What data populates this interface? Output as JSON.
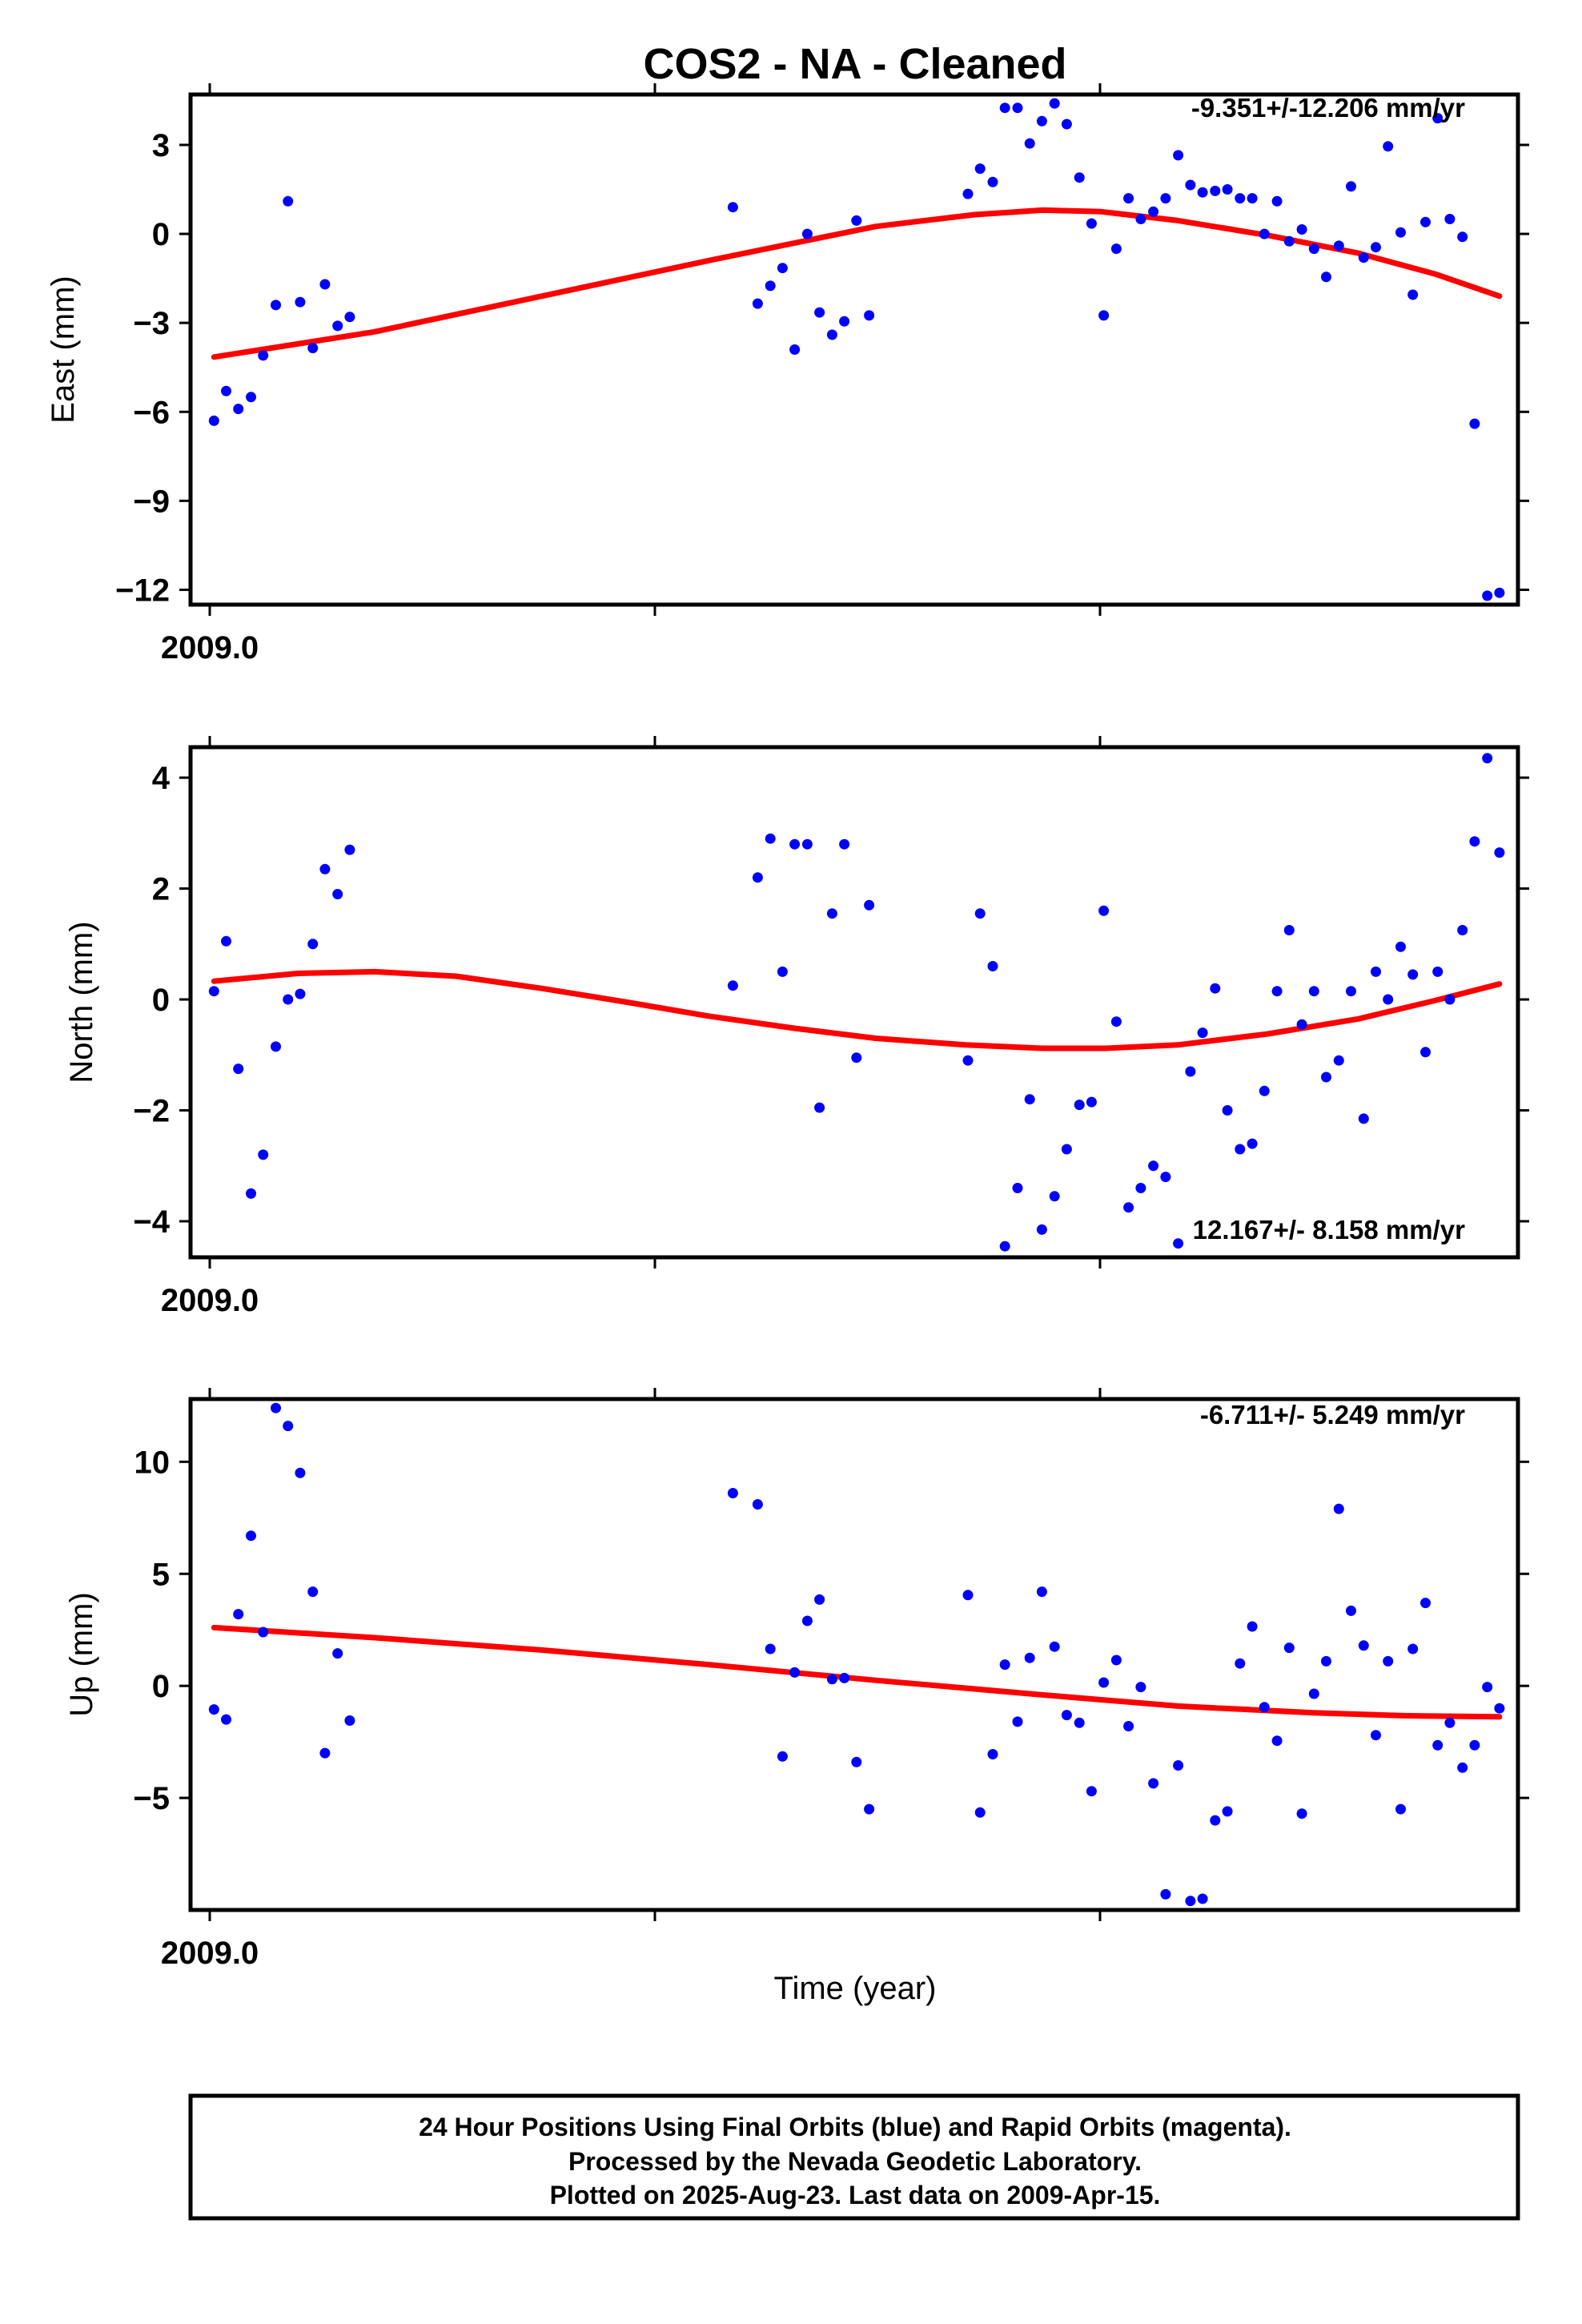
{
  "title": "COS2  - NA - Cleaned",
  "xlabel": "Time (year)",
  "x_tick_label": "2009.0",
  "footer": {
    "line1": "24 Hour Positions Using Final Orbits (blue) and Rapid Orbits (magenta).",
    "line2": "Processed by the Nevada Geodetic Laboratory.",
    "line3": "Plotted on 2025-Aug-23. Last data on 2009-Apr-15."
  },
  "colors": {
    "final_orbits": "#0000ff",
    "fit_line": "#ff0000",
    "frame": "#000000"
  },
  "chart_data": [
    {
      "type": "scatter",
      "ylabel": "East (mm)",
      "rate": "-9.351+/-12.206 mm/yr",
      "ylim": [
        -12.5,
        4.7
      ],
      "yticks": [
        3,
        0,
        -3,
        -6,
        -9,
        -12
      ],
      "xlim": [
        2008.9962,
        2009.2904
      ],
      "grid": false,
      "series": [
        {
          "name": "Final Orbits",
          "points": [
            [
              2009.0014,
              -6.3
            ],
            [
              2009.0041,
              -5.3
            ],
            [
              2009.0068,
              -5.9
            ],
            [
              2009.0096,
              -5.5
            ],
            [
              2009.0123,
              -4.1
            ],
            [
              2009.0151,
              -2.4
            ],
            [
              2009.0178,
              1.1
            ],
            [
              2009.0205,
              -2.3
            ],
            [
              2009.0233,
              -3.85
            ],
            [
              2009.026,
              -1.7
            ],
            [
              2009.0288,
              -3.1
            ],
            [
              2009.0315,
              -2.8
            ],
            [
              2009.1164,
              0.9
            ],
            [
              2009.1219,
              -2.35
            ],
            [
              2009.1247,
              -1.75
            ],
            [
              2009.1274,
              -1.15
            ],
            [
              2009.1301,
              -3.9
            ],
            [
              2009.1329,
              0.0
            ],
            [
              2009.1356,
              -2.65
            ],
            [
              2009.1384,
              -3.4
            ],
            [
              2009.1411,
              -2.95
            ],
            [
              2009.1438,
              0.45
            ],
            [
              2009.1466,
              -2.75
            ],
            [
              2009.1685,
              1.35
            ],
            [
              2009.1712,
              2.2
            ],
            [
              2009.174,
              1.75
            ],
            [
              2009.1767,
              4.25
            ],
            [
              2009.1795,
              4.25
            ],
            [
              2009.1822,
              3.05
            ],
            [
              2009.1849,
              3.8
            ],
            [
              2009.1877,
              4.4
            ],
            [
              2009.1904,
              3.7
            ],
            [
              2009.1932,
              1.9
            ],
            [
              2009.1959,
              0.35
            ],
            [
              2009.1986,
              -2.75
            ],
            [
              2009.2014,
              -0.5
            ],
            [
              2009.2041,
              1.2
            ],
            [
              2009.2068,
              0.5
            ],
            [
              2009.2096,
              0.75
            ],
            [
              2009.2123,
              1.2
            ],
            [
              2009.2151,
              2.65
            ],
            [
              2009.2178,
              1.65
            ],
            [
              2009.2205,
              1.4
            ],
            [
              2009.2233,
              1.45
            ],
            [
              2009.226,
              1.5
            ],
            [
              2009.2288,
              1.2
            ],
            [
              2009.2315,
              1.2
            ],
            [
              2009.2342,
              0.0
            ],
            [
              2009.237,
              1.1
            ],
            [
              2009.2397,
              -0.25
            ],
            [
              2009.2425,
              0.15
            ],
            [
              2009.2452,
              -0.5
            ],
            [
              2009.2479,
              -1.45
            ],
            [
              2009.2507,
              -0.4
            ],
            [
              2009.2534,
              1.6
            ],
            [
              2009.2562,
              -0.8
            ],
            [
              2009.2589,
              -0.45
            ],
            [
              2009.2616,
              2.95
            ],
            [
              2009.2644,
              0.05
            ],
            [
              2009.2671,
              -2.05
            ],
            [
              2009.2699,
              0.4
            ],
            [
              2009.2726,
              3.9
            ],
            [
              2009.2753,
              0.5
            ],
            [
              2009.2781,
              -0.1
            ],
            [
              2009.2808,
              -6.4
            ],
            [
              2009.2836,
              -12.2
            ],
            [
              2009.2863,
              -12.1
            ]
          ]
        },
        {
          "name": "Fit",
          "points": [
            [
              2009.0014,
              -4.15
            ],
            [
              2009.037,
              -3.3
            ],
            [
              2009.074,
              -2.1
            ],
            [
              2009.111,
              -0.9
            ],
            [
              2009.148,
              0.25
            ],
            [
              2009.17,
              0.65
            ],
            [
              2009.185,
              0.8
            ],
            [
              2009.198,
              0.75
            ],
            [
              2009.215,
              0.45
            ],
            [
              2009.235,
              -0.05
            ],
            [
              2009.255,
              -0.65
            ],
            [
              2009.272,
              -1.35
            ],
            [
              2009.2863,
              -2.1
            ]
          ]
        }
      ]
    },
    {
      "type": "scatter",
      "ylabel": "North (mm)",
      "rate": "12.167+/- 8.158 mm/yr",
      "ylim": [
        -4.65,
        4.55
      ],
      "yticks": [
        4,
        2,
        0,
        -2,
        -4
      ],
      "xlim": [
        2008.9962,
        2009.2904
      ],
      "grid": false,
      "series": [
        {
          "name": "Final Orbits",
          "points": [
            [
              2009.0014,
              0.15
            ],
            [
              2009.0041,
              1.05
            ],
            [
              2009.0068,
              -1.25
            ],
            [
              2009.0096,
              -3.5
            ],
            [
              2009.0123,
              -2.8
            ],
            [
              2009.0151,
              -0.85
            ],
            [
              2009.0178,
              0.0
            ],
            [
              2009.0205,
              0.1
            ],
            [
              2009.0233,
              1.0
            ],
            [
              2009.026,
              2.35
            ],
            [
              2009.0288,
              1.9
            ],
            [
              2009.0315,
              2.7
            ],
            [
              2009.1164,
              0.25
            ],
            [
              2009.1219,
              2.2
            ],
            [
              2009.1247,
              2.9
            ],
            [
              2009.1274,
              0.5
            ],
            [
              2009.1301,
              2.8
            ],
            [
              2009.1329,
              2.8
            ],
            [
              2009.1356,
              -1.95
            ],
            [
              2009.1384,
              1.55
            ],
            [
              2009.1411,
              2.8
            ],
            [
              2009.1438,
              -1.05
            ],
            [
              2009.1466,
              1.7
            ],
            [
              2009.1685,
              -1.1
            ],
            [
              2009.1712,
              1.55
            ],
            [
              2009.174,
              0.6
            ],
            [
              2009.1767,
              -4.45
            ],
            [
              2009.1795,
              -3.4
            ],
            [
              2009.1822,
              -1.8
            ],
            [
              2009.1849,
              -4.15
            ],
            [
              2009.1877,
              -3.55
            ],
            [
              2009.1904,
              -2.7
            ],
            [
              2009.1932,
              -1.9
            ],
            [
              2009.1959,
              -1.85
            ],
            [
              2009.1986,
              1.6
            ],
            [
              2009.2014,
              -0.4
            ],
            [
              2009.2041,
              -3.75
            ],
            [
              2009.2068,
              -3.4
            ],
            [
              2009.2096,
              -3.0
            ],
            [
              2009.2123,
              -3.2
            ],
            [
              2009.2151,
              -4.4
            ],
            [
              2009.2178,
              -1.3
            ],
            [
              2009.2205,
              -0.6
            ],
            [
              2009.2233,
              0.2
            ],
            [
              2009.226,
              -2.0
            ],
            [
              2009.2288,
              -2.7
            ],
            [
              2009.2315,
              -2.6
            ],
            [
              2009.2342,
              -1.65
            ],
            [
              2009.237,
              0.15
            ],
            [
              2009.2397,
              1.25
            ],
            [
              2009.2425,
              -0.45
            ],
            [
              2009.2452,
              0.15
            ],
            [
              2009.2479,
              -1.4
            ],
            [
              2009.2507,
              -1.1
            ],
            [
              2009.2534,
              0.15
            ],
            [
              2009.2562,
              -2.15
            ],
            [
              2009.2589,
              0.5
            ],
            [
              2009.2616,
              0.0
            ],
            [
              2009.2644,
              0.95
            ],
            [
              2009.2671,
              0.45
            ],
            [
              2009.2699,
              -0.95
            ],
            [
              2009.2726,
              0.5
            ],
            [
              2009.2753,
              0.0
            ],
            [
              2009.2781,
              1.25
            ],
            [
              2009.2808,
              2.85
            ],
            [
              2009.2836,
              4.35
            ],
            [
              2009.2863,
              2.65
            ]
          ]
        },
        {
          "name": "Fit",
          "points": [
            [
              2009.0014,
              0.33
            ],
            [
              2009.02,
              0.47
            ],
            [
              2009.037,
              0.5
            ],
            [
              2009.055,
              0.42
            ],
            [
              2009.074,
              0.2
            ],
            [
              2009.093,
              -0.05
            ],
            [
              2009.111,
              -0.3
            ],
            [
              2009.13,
              -0.52
            ],
            [
              2009.148,
              -0.7
            ],
            [
              2009.168,
              -0.82
            ],
            [
              2009.185,
              -0.88
            ],
            [
              2009.199,
              -0.88
            ],
            [
              2009.215,
              -0.82
            ],
            [
              2009.235,
              -0.62
            ],
            [
              2009.255,
              -0.35
            ],
            [
              2009.272,
              -0.02
            ],
            [
              2009.2863,
              0.28
            ]
          ]
        }
      ]
    },
    {
      "type": "scatter",
      "ylabel": "Up (mm)",
      "rate": "-6.711+/- 5.249 mm/yr",
      "ylim": [
        -10.0,
        12.8
      ],
      "yticks": [
        10,
        5,
        0,
        -5
      ],
      "xlim": [
        2008.9962,
        2009.2904
      ],
      "grid": false,
      "series": [
        {
          "name": "Final Orbits",
          "points": [
            [
              2009.0014,
              -1.05
            ],
            [
              2009.0041,
              -1.5
            ],
            [
              2009.0068,
              3.2
            ],
            [
              2009.0096,
              6.7
            ],
            [
              2009.0123,
              2.4
            ],
            [
              2009.0151,
              12.4
            ],
            [
              2009.0178,
              11.6
            ],
            [
              2009.0205,
              9.5
            ],
            [
              2009.0233,
              4.2
            ],
            [
              2009.026,
              -3.0
            ],
            [
              2009.0288,
              1.45
            ],
            [
              2009.0315,
              -1.55
            ],
            [
              2009.1164,
              8.6
            ],
            [
              2009.1219,
              8.1
            ],
            [
              2009.1247,
              1.65
            ],
            [
              2009.1274,
              -3.15
            ],
            [
              2009.1301,
              0.6
            ],
            [
              2009.1329,
              2.9
            ],
            [
              2009.1356,
              3.85
            ],
            [
              2009.1384,
              0.3
            ],
            [
              2009.1411,
              0.35
            ],
            [
              2009.1438,
              -3.4
            ],
            [
              2009.1466,
              -5.5
            ],
            [
              2009.1685,
              4.05
            ],
            [
              2009.1712,
              -5.65
            ],
            [
              2009.174,
              -3.05
            ],
            [
              2009.1767,
              0.95
            ],
            [
              2009.1795,
              -1.6
            ],
            [
              2009.1822,
              1.25
            ],
            [
              2009.1849,
              4.2
            ],
            [
              2009.1877,
              1.75
            ],
            [
              2009.1904,
              -1.3
            ],
            [
              2009.1932,
              -1.65
            ],
            [
              2009.1959,
              -4.7
            ],
            [
              2009.1986,
              0.15
            ],
            [
              2009.2014,
              1.15
            ],
            [
              2009.2041,
              -1.8
            ],
            [
              2009.2068,
              -0.05
            ],
            [
              2009.2096,
              -4.35
            ],
            [
              2009.2123,
              -9.3
            ],
            [
              2009.2151,
              -3.55
            ],
            [
              2009.2178,
              -9.6
            ],
            [
              2009.2205,
              -9.5
            ],
            [
              2009.2233,
              -6.0
            ],
            [
              2009.226,
              -5.6
            ],
            [
              2009.2288,
              1.0
            ],
            [
              2009.2315,
              2.65
            ],
            [
              2009.2342,
              -0.95
            ],
            [
              2009.237,
              -2.45
            ],
            [
              2009.2397,
              1.7
            ],
            [
              2009.2425,
              -5.7
            ],
            [
              2009.2452,
              -0.35
            ],
            [
              2009.2479,
              1.1
            ],
            [
              2009.2507,
              7.9
            ],
            [
              2009.2534,
              3.35
            ],
            [
              2009.2562,
              1.8
            ],
            [
              2009.2589,
              -2.2
            ],
            [
              2009.2616,
              1.1
            ],
            [
              2009.2644,
              -5.5
            ],
            [
              2009.2671,
              1.65
            ],
            [
              2009.2699,
              3.7
            ],
            [
              2009.2726,
              -2.65
            ],
            [
              2009.2753,
              -1.65
            ],
            [
              2009.2781,
              -3.65
            ],
            [
              2009.2808,
              -2.65
            ],
            [
              2009.2836,
              -0.05
            ],
            [
              2009.2863,
              -1.0
            ]
          ]
        },
        {
          "name": "Fit",
          "points": [
            [
              2009.0014,
              2.6
            ],
            [
              2009.037,
              2.15
            ],
            [
              2009.074,
              1.6
            ],
            [
              2009.111,
              0.95
            ],
            [
              2009.148,
              0.25
            ],
            [
              2009.185,
              -0.4
            ],
            [
              2009.215,
              -0.9
            ],
            [
              2009.245,
              -1.2
            ],
            [
              2009.265,
              -1.33
            ],
            [
              2009.2863,
              -1.38
            ]
          ]
        }
      ]
    }
  ]
}
